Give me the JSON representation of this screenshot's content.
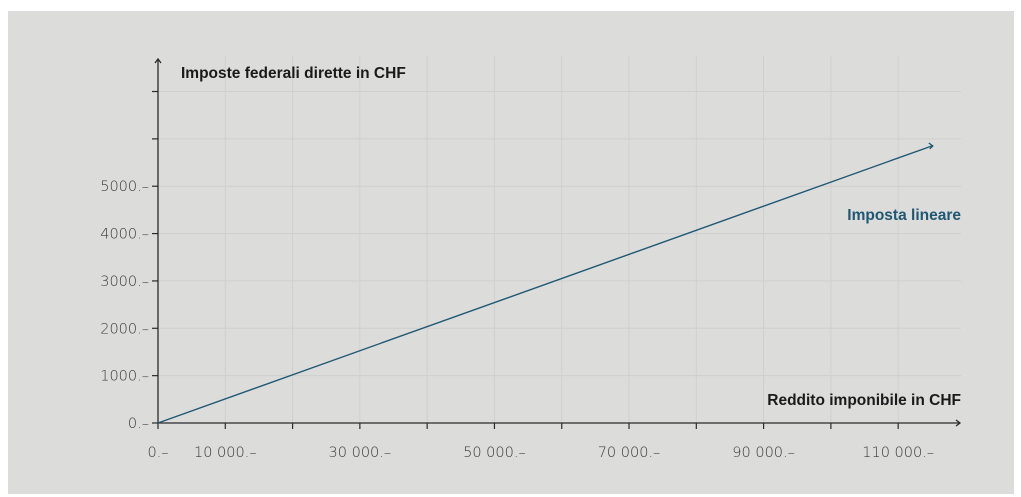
{
  "chart_data": {
    "type": "line",
    "title": "",
    "ylabel": "Imposte federali dirette in CHF",
    "xlabel": "Reddito imponibile in CHF",
    "x_ticks": [
      {
        "value": 0,
        "label": "0.–"
      },
      {
        "value": 10000,
        "label": "10 000.–"
      },
      {
        "value": 30000,
        "label": "30 000.–"
      },
      {
        "value": 50000,
        "label": "50 000.–"
      },
      {
        "value": 70000,
        "label": "70 000.–"
      },
      {
        "value": 90000,
        "label": "90 000.–"
      },
      {
        "value": 110000,
        "label": "110 000.–"
      }
    ],
    "y_ticks": [
      {
        "value": 0,
        "label": "0.–"
      },
      {
        "value": 1000,
        "label": "1000.–"
      },
      {
        "value": 2000,
        "label": "2000.–"
      },
      {
        "value": 3000,
        "label": "3000.–"
      },
      {
        "value": 4000,
        "label": "4000.–"
      },
      {
        "value": 5000,
        "label": "5000.–"
      }
    ],
    "x_minor_ticks": [
      20000,
      40000,
      60000,
      80000,
      100000
    ],
    "y_minor_ticks": [
      6000,
      7000
    ],
    "xlim": [
      0,
      118000
    ],
    "ylim": [
      0,
      7750
    ],
    "grid": true,
    "series": [
      {
        "name": "Imposta lineare",
        "color": "#1f5873",
        "points": [
          [
            0,
            0
          ],
          [
            115000,
            5850
          ]
        ]
      }
    ]
  },
  "colors": {
    "background": "#dcdcdb",
    "grid": "#cfcfce",
    "axis": "#2a2a2a",
    "series": "#1f5873"
  }
}
